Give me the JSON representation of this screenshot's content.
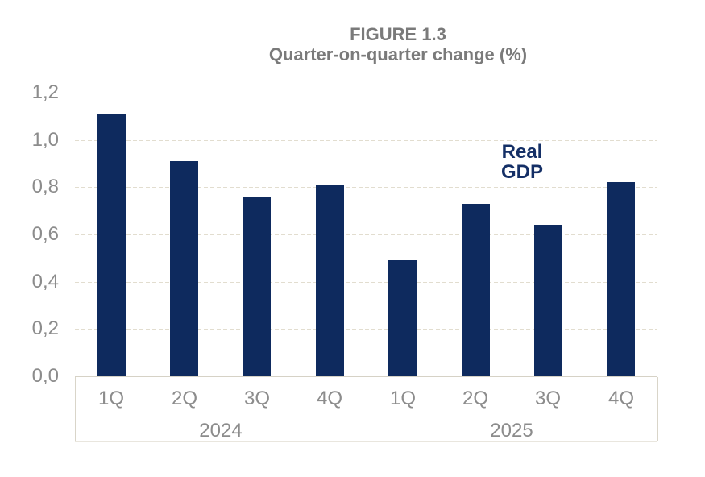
{
  "figure": {
    "title_line1": "FIGURE 1.3",
    "title_line2": "Quarter-on-quarter change (%)"
  },
  "annotation": {
    "line1": "Real",
    "line2": "GDP"
  },
  "chart_data": {
    "type": "bar",
    "title": "FIGURE 1.3",
    "subtitle": "Quarter-on-quarter change (%)",
    "series_label": "Real GDP",
    "groups": [
      {
        "year": "2024",
        "categories": [
          "1Q",
          "2Q",
          "3Q",
          "4Q"
        ],
        "values": [
          1.11,
          0.91,
          0.76,
          0.81
        ]
      },
      {
        "year": "2025",
        "categories": [
          "1Q",
          "2Q",
          "3Q",
          "4Q"
        ],
        "values": [
          0.49,
          0.73,
          0.64,
          0.82
        ]
      }
    ],
    "ylim": [
      0,
      1.2
    ],
    "ytick_labels": [
      "0,0",
      "0,2",
      "0,4",
      "0,6",
      "0,8",
      "1,0",
      "1,2"
    ],
    "ytick_values": [
      0,
      0.2,
      0.4,
      0.6,
      0.8,
      1.0,
      1.2
    ],
    "grid": "horizontal-dashed",
    "legend_position": "none",
    "bar_color": "#0e2a5e",
    "gridline_color": "#e2ddcf",
    "axis_text_color": "#8c8c8c",
    "title_color": "#7a7a7a",
    "annotation_color": "#142f66"
  }
}
